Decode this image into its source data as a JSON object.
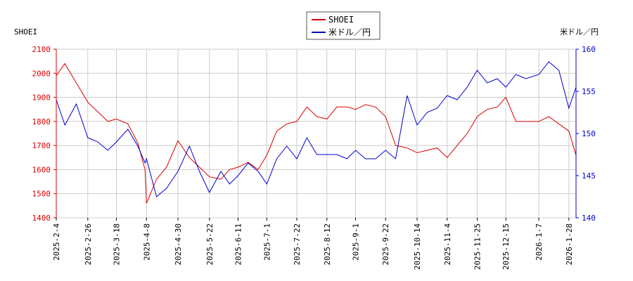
{
  "chart_data": {
    "type": "line",
    "left_axis_label": "SHOEI",
    "right_axis_label": "米ドル／円",
    "grid": true,
    "legend_placement": "top-center",
    "x_tick_labels": [
      "2025-2-4",
      "2025-2-26",
      "2025-3-18",
      "2025-4-8",
      "2025-4-30",
      "2025-5-22",
      "2025-6-11",
      "2025-7-1",
      "2025-7-22",
      "2025-8-12",
      "2025-9-1",
      "2025-9-22",
      "2025-10-14",
      "2025-11-4",
      "2025-11-25",
      "2025-12-15",
      "2026-1-7",
      "2026-1-28"
    ],
    "ylim_left": [
      1400,
      2100
    ],
    "yticks_left": [
      1400,
      1500,
      1600,
      1700,
      1800,
      1900,
      2000,
      2100
    ],
    "ylim_right": [
      140,
      160
    ],
    "yticks_right": [
      140,
      145,
      150,
      155,
      160
    ],
    "series": [
      {
        "name": "SHOEI",
        "axis": "left",
        "color": "#dd0000",
        "x": [
          "2025-2-4",
          "2025-2-10",
          "2025-2-18",
          "2025-2-26",
          "2025-3-5",
          "2025-3-12",
          "2025-3-18",
          "2025-3-26",
          "2025-4-2",
          "2025-4-7",
          "2025-4-8",
          "2025-4-15",
          "2025-4-22",
          "2025-4-30",
          "2025-5-8",
          "2025-5-15",
          "2025-5-22",
          "2025-5-30",
          "2025-6-5",
          "2025-6-11",
          "2025-6-18",
          "2025-6-25",
          "2025-7-1",
          "2025-7-8",
          "2025-7-15",
          "2025-7-22",
          "2025-7-29",
          "2025-8-5",
          "2025-8-12",
          "2025-8-19",
          "2025-8-26",
          "2025-9-1",
          "2025-9-8",
          "2025-9-15",
          "2025-9-22",
          "2025-9-29",
          "2025-10-7",
          "2025-10-14",
          "2025-10-21",
          "2025-10-28",
          "2025-11-4",
          "2025-11-11",
          "2025-11-18",
          "2025-11-25",
          "2025-12-2",
          "2025-12-9",
          "2025-12-15",
          "2025-12-22",
          "2025-12-29",
          "2026-1-7",
          "2026-1-14",
          "2026-1-21",
          "2026-1-28",
          "2026-2-2"
        ],
        "values": [
          1990,
          2040,
          1960,
          1880,
          1840,
          1800,
          1810,
          1790,
          1710,
          1600,
          1460,
          1560,
          1610,
          1720,
          1650,
          1610,
          1570,
          1560,
          1600,
          1610,
          1630,
          1600,
          1660,
          1760,
          1790,
          1800,
          1860,
          1820,
          1810,
          1860,
          1860,
          1850,
          1870,
          1860,
          1820,
          1700,
          1690,
          1670,
          1680,
          1690,
          1650,
          1700,
          1750,
          1820,
          1850,
          1860,
          1900,
          1800,
          1800,
          1800,
          1820,
          1790,
          1760,
          1660
        ]
      },
      {
        "name": "米ドル／円",
        "axis": "right",
        "color": "#0000cc",
        "x": [
          "2025-2-4",
          "2025-2-10",
          "2025-2-18",
          "2025-2-26",
          "2025-3-5",
          "2025-3-12",
          "2025-3-18",
          "2025-3-26",
          "2025-4-2",
          "2025-4-7",
          "2025-4-8",
          "2025-4-15",
          "2025-4-22",
          "2025-4-30",
          "2025-5-8",
          "2025-5-15",
          "2025-5-22",
          "2025-5-30",
          "2025-6-5",
          "2025-6-11",
          "2025-6-18",
          "2025-6-25",
          "2025-7-1",
          "2025-7-8",
          "2025-7-15",
          "2025-7-22",
          "2025-7-29",
          "2025-8-5",
          "2025-8-12",
          "2025-8-19",
          "2025-8-26",
          "2025-9-1",
          "2025-9-8",
          "2025-9-15",
          "2025-9-22",
          "2025-9-29",
          "2025-10-7",
          "2025-10-14",
          "2025-10-21",
          "2025-10-28",
          "2025-11-4",
          "2025-11-11",
          "2025-11-18",
          "2025-11-25",
          "2025-12-2",
          "2025-12-9",
          "2025-12-15",
          "2025-12-22",
          "2025-12-29",
          "2026-1-7",
          "2026-1-14",
          "2026-1-21",
          "2026-1-28",
          "2026-2-2"
        ],
        "values": [
          154.0,
          151.0,
          153.5,
          149.5,
          149.0,
          148.0,
          149.0,
          150.5,
          148.5,
          146.5,
          147.0,
          142.5,
          143.5,
          145.5,
          148.5,
          145.5,
          143.0,
          145.5,
          144.0,
          145.0,
          146.5,
          145.5,
          144.0,
          147.0,
          148.5,
          147.0,
          149.5,
          147.5,
          147.5,
          147.5,
          147.0,
          148.0,
          147.0,
          147.0,
          148.0,
          147.0,
          154.5,
          151.0,
          152.5,
          153.0,
          154.5,
          154.0,
          155.5,
          157.5,
          156.0,
          156.5,
          155.5,
          157.0,
          156.5,
          157.0,
          158.5,
          157.5,
          153.0,
          155.5
        ]
      }
    ]
  }
}
